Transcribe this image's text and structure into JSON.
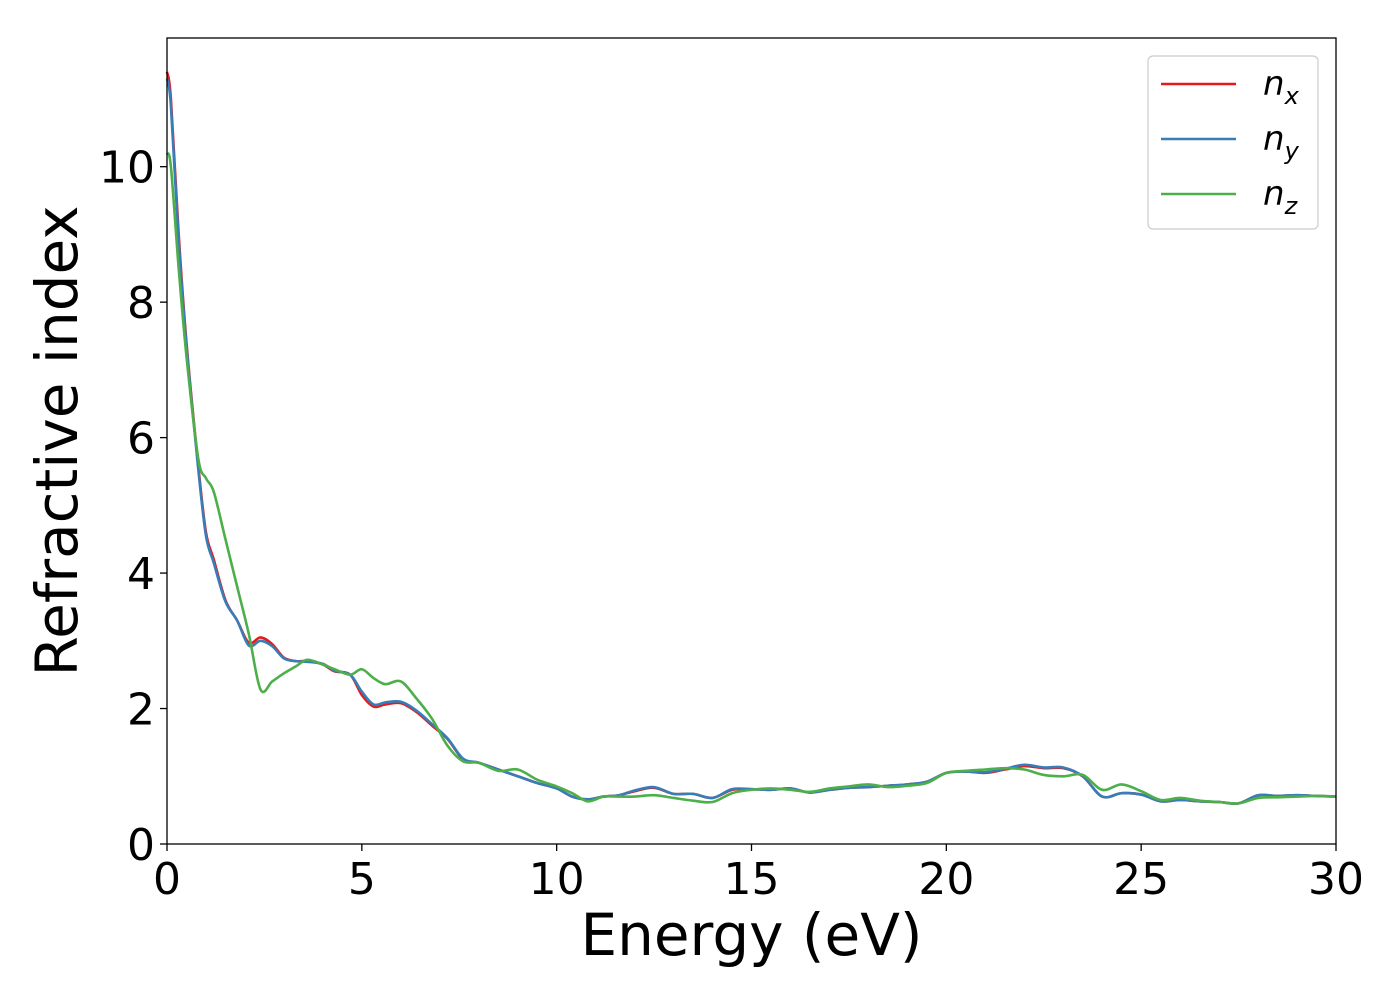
{
  "chart_data": {
    "type": "line",
    "xlabel": "Energy (eV)",
    "ylabel": "Refractive index",
    "xlim": [
      0,
      30
    ],
    "ylim": [
      0,
      11.9
    ],
    "xticks": [
      "0",
      "5",
      "10",
      "15",
      "20",
      "25",
      "30"
    ],
    "yticks": [
      "0",
      "2",
      "4",
      "6",
      "8",
      "10"
    ],
    "legend_position": "top-right",
    "grid": false,
    "series": [
      {
        "name": "n_x",
        "label_base": "n",
        "label_sub": "x",
        "color": "#e41a1c",
        "x": [
          0,
          0.1,
          0.3,
          0.5,
          0.8,
          1.0,
          1.2,
          1.5,
          1.8,
          2.1,
          2.4,
          2.7,
          3.0,
          3.3,
          3.6,
          4.0,
          4.3,
          4.7,
          5.0,
          5.3,
          5.6,
          6.0,
          6.4,
          6.8,
          7.2,
          7.6,
          8.0,
          8.5,
          9.0,
          9.5,
          10.0,
          10.4,
          10.8,
          11.2,
          11.6,
          12.0,
          12.5,
          13.0,
          13.5,
          14.0,
          14.5,
          15.0,
          15.5,
          16.0,
          16.5,
          17.0,
          17.5,
          18.0,
          18.5,
          19.0,
          19.5,
          20.0,
          20.5,
          21.0,
          21.5,
          22.0,
          22.5,
          23.0,
          23.5,
          24.0,
          24.5,
          25.0,
          25.5,
          26.0,
          26.5,
          27.0,
          27.5,
          28.0,
          28.5,
          29.0,
          29.5,
          30.0
        ],
        "values": [
          11.4,
          11.0,
          9.0,
          7.4,
          5.6,
          4.6,
          4.2,
          3.6,
          3.3,
          2.97,
          3.05,
          2.95,
          2.75,
          2.7,
          2.7,
          2.65,
          2.55,
          2.5,
          2.2,
          2.03,
          2.06,
          2.08,
          1.95,
          1.75,
          1.55,
          1.25,
          1.2,
          1.1,
          1.0,
          0.9,
          0.82,
          0.7,
          0.66,
          0.7,
          0.72,
          0.78,
          0.83,
          0.74,
          0.74,
          0.68,
          0.8,
          0.81,
          0.8,
          0.82,
          0.76,
          0.8,
          0.83,
          0.84,
          0.86,
          0.88,
          0.92,
          1.05,
          1.07,
          1.05,
          1.1,
          1.15,
          1.12,
          1.12,
          1.0,
          0.7,
          0.75,
          0.73,
          0.63,
          0.65,
          0.63,
          0.62,
          0.6,
          0.72,
          0.71,
          0.72,
          0.71,
          0.7
        ]
      },
      {
        "name": "n_y",
        "label_base": "n",
        "label_sub": "y",
        "color": "#377eb8",
        "x": [
          0,
          0.1,
          0.3,
          0.5,
          0.8,
          1.0,
          1.2,
          1.5,
          1.8,
          2.1,
          2.4,
          2.7,
          3.0,
          3.3,
          3.6,
          4.0,
          4.3,
          4.7,
          5.0,
          5.3,
          5.6,
          6.0,
          6.4,
          6.8,
          7.2,
          7.6,
          8.0,
          8.5,
          9.0,
          9.5,
          10.0,
          10.4,
          10.8,
          11.2,
          11.6,
          12.0,
          12.5,
          13.0,
          13.5,
          14.0,
          14.5,
          15.0,
          15.5,
          16.0,
          16.5,
          17.0,
          17.5,
          18.0,
          18.5,
          19.0,
          19.5,
          20.0,
          20.5,
          21.0,
          21.5,
          22.0,
          22.5,
          23.0,
          23.5,
          24.0,
          24.5,
          25.0,
          25.5,
          26.0,
          26.5,
          27.0,
          27.5,
          28.0,
          28.5,
          29.0,
          29.5,
          30.0
        ],
        "values": [
          11.3,
          10.9,
          8.9,
          7.35,
          5.55,
          4.55,
          4.15,
          3.58,
          3.3,
          2.93,
          3.0,
          2.92,
          2.74,
          2.7,
          2.69,
          2.66,
          2.56,
          2.5,
          2.25,
          2.06,
          2.09,
          2.1,
          1.97,
          1.77,
          1.56,
          1.26,
          1.2,
          1.1,
          1.0,
          0.9,
          0.82,
          0.7,
          0.66,
          0.7,
          0.72,
          0.79,
          0.84,
          0.74,
          0.74,
          0.68,
          0.81,
          0.81,
          0.8,
          0.82,
          0.76,
          0.8,
          0.83,
          0.84,
          0.86,
          0.88,
          0.92,
          1.05,
          1.07,
          1.06,
          1.11,
          1.17,
          1.13,
          1.13,
          1.0,
          0.7,
          0.75,
          0.73,
          0.63,
          0.65,
          0.63,
          0.62,
          0.6,
          0.72,
          0.71,
          0.72,
          0.71,
          0.7
        ]
      },
      {
        "name": "n_z",
        "label_base": "n",
        "label_sub": "z",
        "color": "#4daf4a",
        "x": [
          0,
          0.1,
          0.3,
          0.5,
          0.8,
          1.0,
          1.2,
          1.5,
          1.8,
          2.1,
          2.4,
          2.7,
          3.0,
          3.3,
          3.6,
          4.0,
          4.3,
          4.7,
          5.0,
          5.3,
          5.6,
          6.0,
          6.4,
          6.8,
          7.2,
          7.6,
          8.0,
          8.5,
          9.0,
          9.5,
          10.0,
          10.4,
          10.8,
          11.2,
          11.6,
          12.0,
          12.5,
          13.0,
          13.5,
          14.0,
          14.5,
          15.0,
          15.5,
          16.0,
          16.5,
          17.0,
          17.5,
          18.0,
          18.5,
          19.0,
          19.5,
          20.0,
          20.5,
          21.0,
          21.5,
          22.0,
          22.5,
          23.0,
          23.5,
          24.0,
          24.5,
          25.0,
          25.5,
          26.0,
          26.5,
          27.0,
          27.5,
          28.0,
          28.5,
          29.0,
          29.5,
          30.0
        ],
        "values": [
          10.2,
          10.0,
          8.5,
          7.2,
          5.7,
          5.4,
          5.2,
          4.5,
          3.8,
          3.1,
          2.28,
          2.4,
          2.52,
          2.62,
          2.72,
          2.65,
          2.58,
          2.5,
          2.58,
          2.45,
          2.36,
          2.4,
          2.15,
          1.85,
          1.45,
          1.22,
          1.2,
          1.08,
          1.1,
          0.95,
          0.85,
          0.75,
          0.63,
          0.7,
          0.7,
          0.7,
          0.72,
          0.68,
          0.64,
          0.62,
          0.75,
          0.8,
          0.82,
          0.8,
          0.77,
          0.82,
          0.85,
          0.88,
          0.84,
          0.86,
          0.9,
          1.05,
          1.08,
          1.1,
          1.12,
          1.1,
          1.02,
          1.0,
          1.02,
          0.8,
          0.88,
          0.78,
          0.65,
          0.68,
          0.64,
          0.62,
          0.6,
          0.68,
          0.69,
          0.7,
          0.71,
          0.7
        ]
      }
    ]
  }
}
